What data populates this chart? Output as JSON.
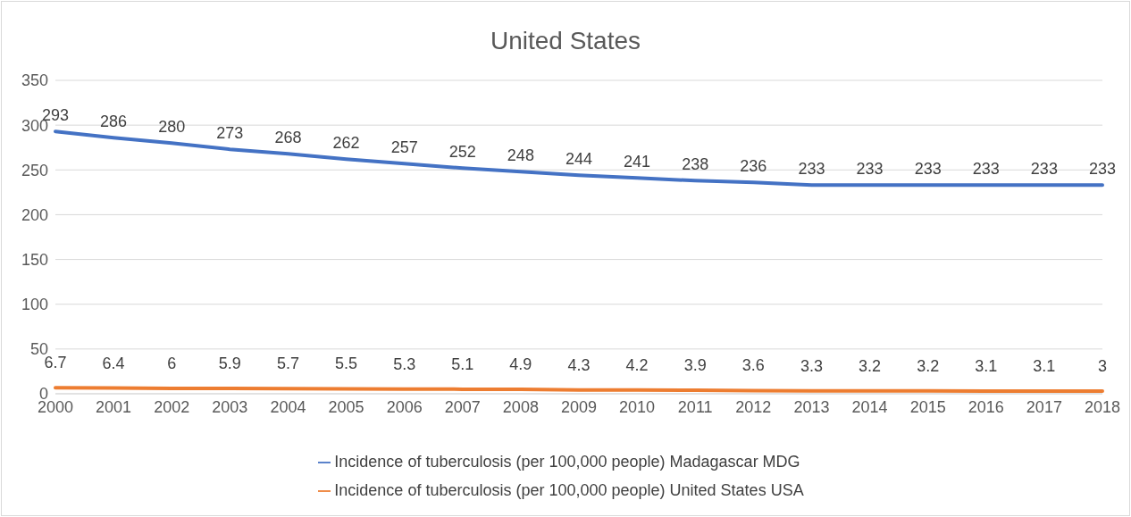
{
  "chart_data": {
    "type": "line",
    "title": "United States",
    "categories": [
      "2000",
      "2001",
      "2002",
      "2003",
      "2004",
      "2005",
      "2006",
      "2007",
      "2008",
      "2009",
      "2010",
      "2011",
      "2012",
      "2013",
      "2014",
      "2015",
      "2016",
      "2017",
      "2018"
    ],
    "series": [
      {
        "name": "Incidence of tuberculosis (per 100,000 people) Madagascar MDG",
        "color": "#4472c4",
        "values": [
          293,
          286,
          280,
          273,
          268,
          262,
          257,
          252,
          248,
          244,
          241,
          238,
          236,
          233,
          233,
          233,
          233,
          233,
          233
        ]
      },
      {
        "name": "Incidence of tuberculosis (per 100,000 people) United States USA",
        "color": "#ed7d31",
        "values": [
          6.7,
          6.4,
          6,
          5.9,
          5.7,
          5.5,
          5.3,
          5.1,
          4.9,
          4.3,
          4.2,
          3.9,
          3.6,
          3.3,
          3.2,
          3.2,
          3.1,
          3.1,
          3
        ]
      }
    ],
    "ylim": [
      0,
      350
    ],
    "yticks": [
      0,
      50,
      100,
      150,
      200,
      250,
      300,
      350
    ],
    "grid": "y",
    "legend": "bottom",
    "marker": "none",
    "line_style": "solid",
    "data_labels": true
  }
}
